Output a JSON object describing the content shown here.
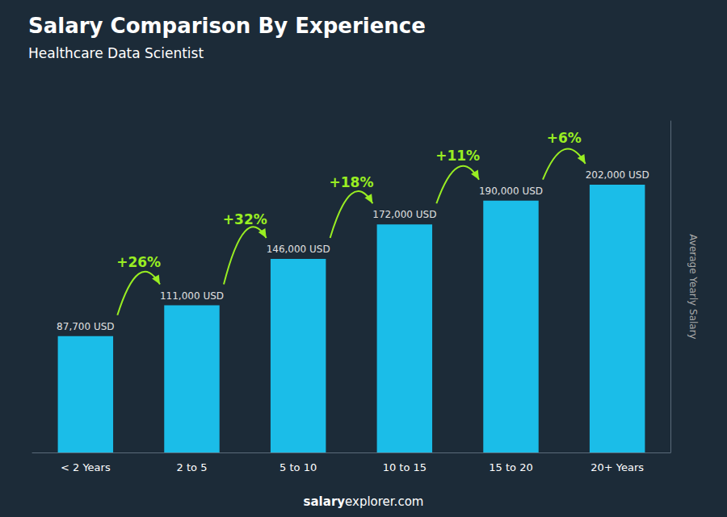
{
  "chart_data": {
    "type": "bar",
    "title": "Salary Comparison By Experience",
    "subtitle": "Healthcare Data Scientist",
    "ylabel": "Average Yearly Salary",
    "categories": [
      "< 2 Years",
      "2 to 5",
      "5 to 10",
      "10 to 15",
      "15 to 20",
      "20+ Years"
    ],
    "values": [
      87700,
      111000,
      146000,
      172000,
      190000,
      202000
    ],
    "value_labels": [
      "87,700 USD",
      "111,000 USD",
      "146,000 USD",
      "172,000 USD",
      "190,000 USD",
      "202,000 USD"
    ],
    "data_labels": true,
    "annotations": [
      "+26%",
      "+32%",
      "+18%",
      "+11%",
      "+6%"
    ],
    "color": "#1bbde8",
    "ylim": [
      0,
      250000
    ],
    "tick_labels": "x",
    "grid": false,
    "footer": [
      "salary",
      "explorer.com"
    ]
  }
}
